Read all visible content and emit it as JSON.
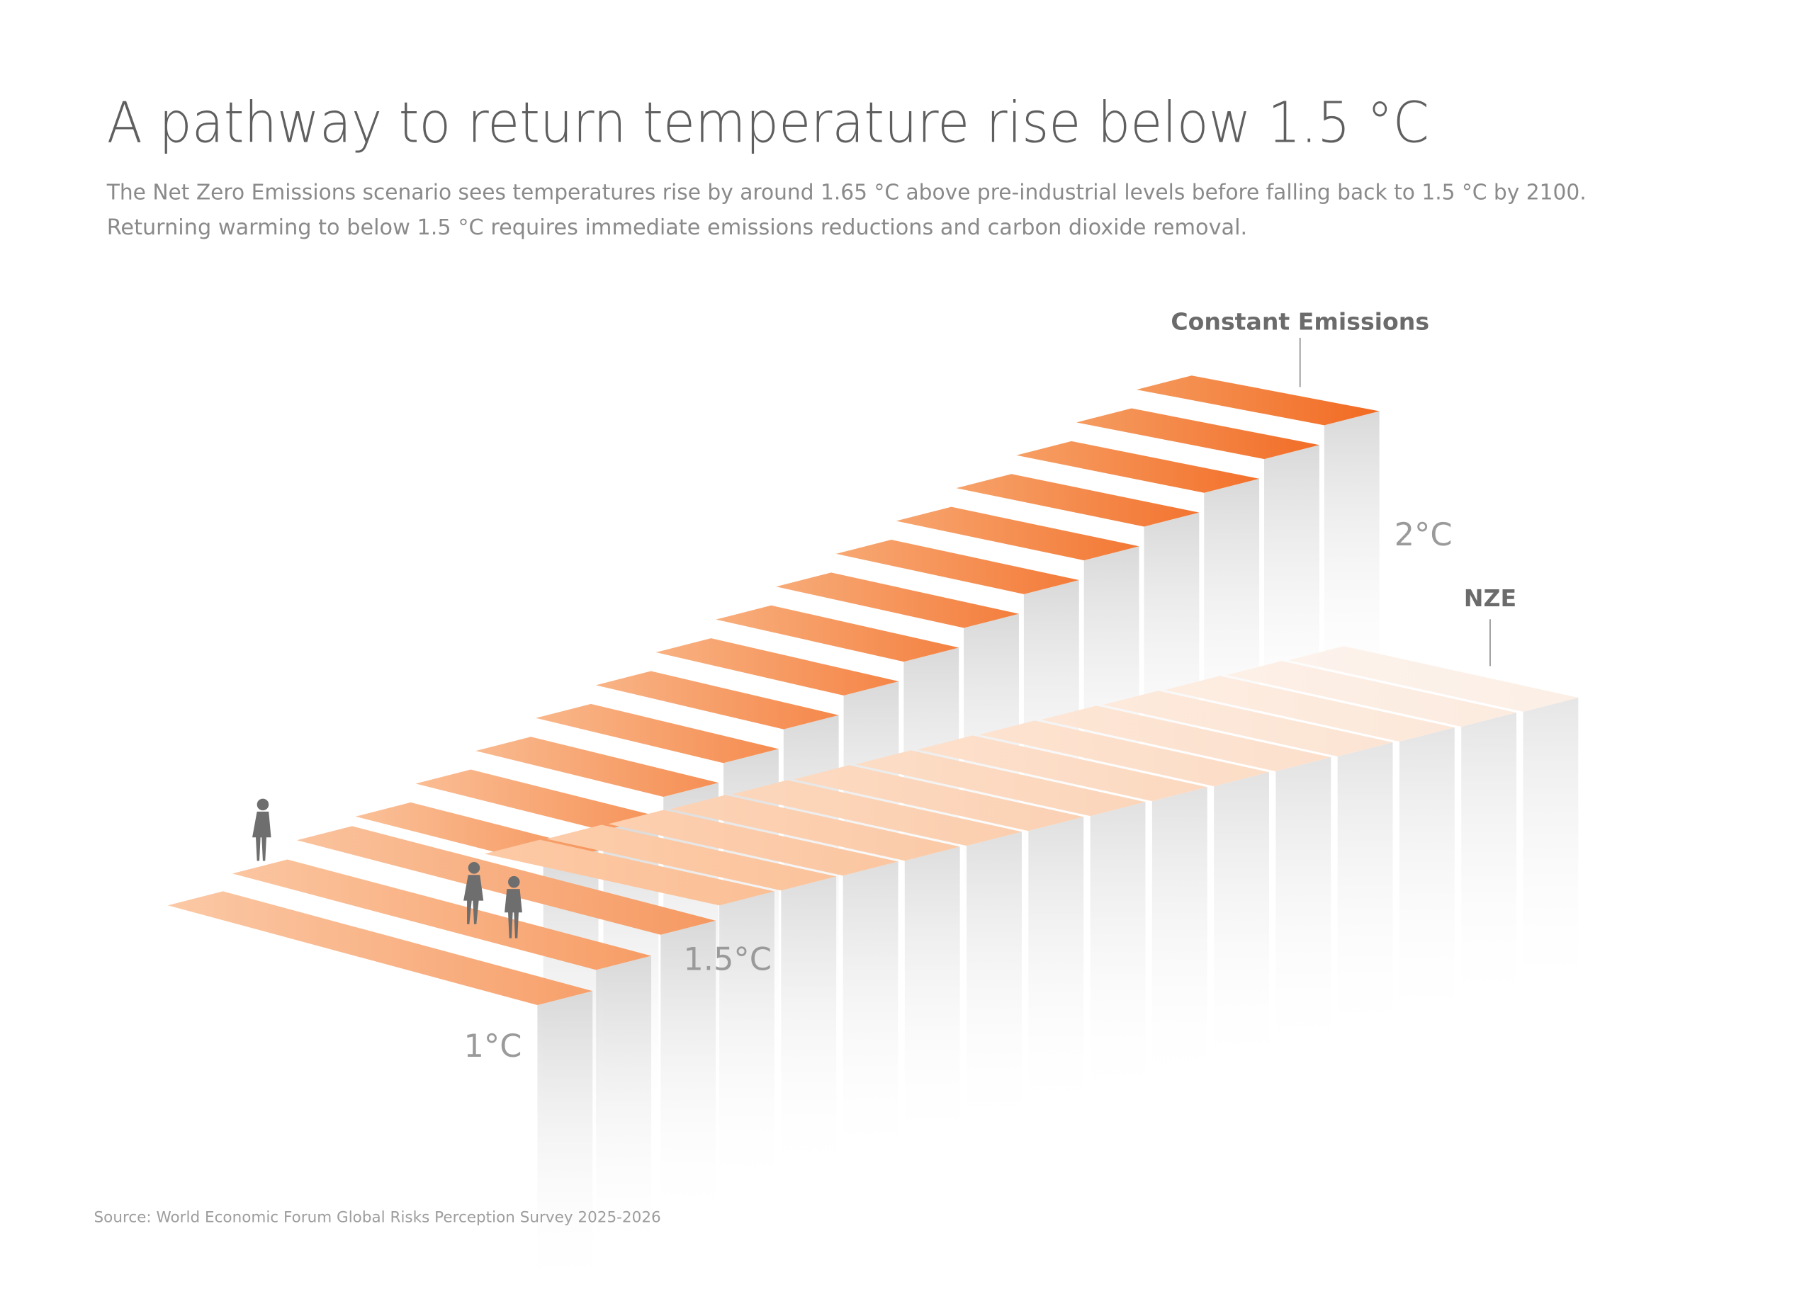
{
  "header": {
    "title": "A pathway to return temperature rise below 1.5 °C",
    "subtitle": [
      "The Net Zero Emissions scenario sees temperatures rise by around 1.65 °C above pre-industrial levels before falling back to 1.5 °C by 2100.",
      "Returning warming to below 1.5 °C requires immediate emissions reductions and carbon dioxide removal."
    ]
  },
  "labels": {
    "constant_emissions": "Constant Emissions",
    "nze": "NZE",
    "two_degrees": "2°C",
    "one_five_degrees": "1.5°C",
    "one_degree": "1°C"
  },
  "source": "Source: World Economic Forum Global Risks Perception Survey 2025-2026"
}
